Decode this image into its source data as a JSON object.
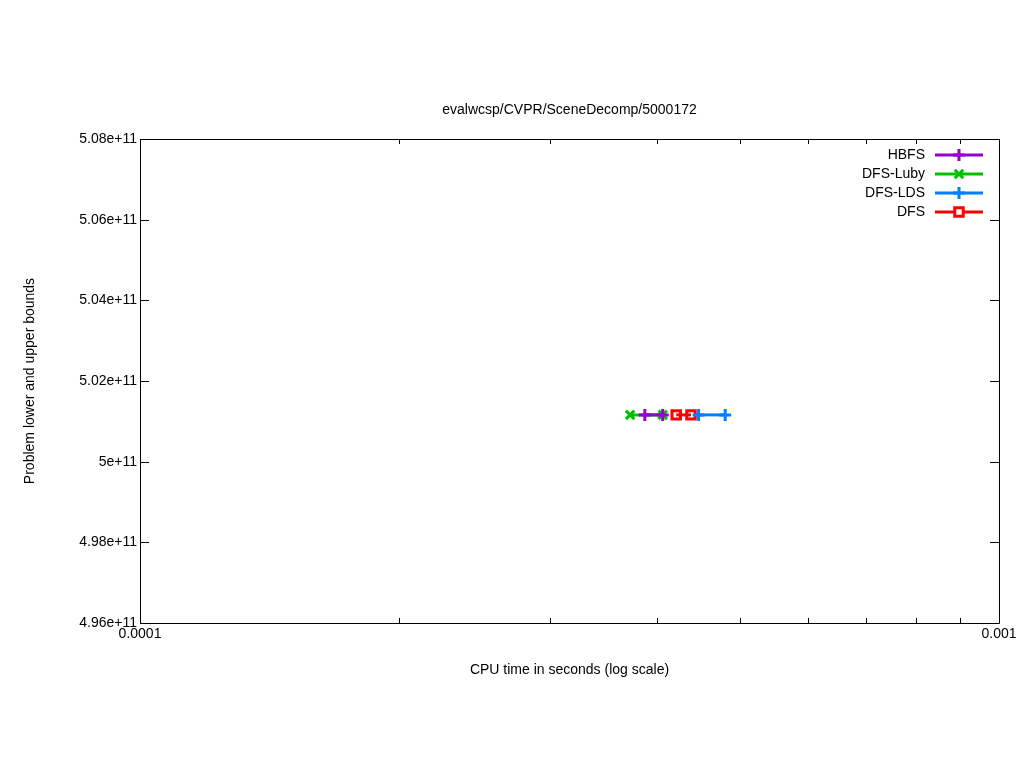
{
  "chart_data": {
    "type": "line",
    "title": "evalwcsp/CVPR/SceneDecomp/5000172",
    "xlabel": "CPU time in seconds (log scale)",
    "ylabel": "Problem lower and upper bounds",
    "log": "x",
    "legend": "top right",
    "line_style": "solid",
    "xlim": [
      0.0001,
      0.001
    ],
    "xticks": [
      {
        "value": 0.0001,
        "label": "0.0001"
      },
      {
        "value": 0.0002,
        "label": null
      },
      {
        "value": 0.0003,
        "label": null
      },
      {
        "value": 0.0004,
        "label": null
      },
      {
        "value": 0.0005,
        "label": null
      },
      {
        "value": 0.0006,
        "label": null
      },
      {
        "value": 0.0007,
        "label": null
      },
      {
        "value": 0.0008,
        "label": null
      },
      {
        "value": 0.0009,
        "label": null
      },
      {
        "value": 0.001,
        "label": "0.001"
      }
    ],
    "ylim": [
      496000000000,
      508000000000
    ],
    "yticks": [
      {
        "value": 496000000000,
        "label": "4.96e+11"
      },
      {
        "value": 498000000000,
        "label": "4.98e+11"
      },
      {
        "value": 500000000000,
        "label": "5e+11"
      },
      {
        "value": 502000000000,
        "label": "5.02e+11"
      },
      {
        "value": 504000000000,
        "label": "5.04e+11"
      },
      {
        "value": 506000000000,
        "label": "5.06e+11"
      },
      {
        "value": 508000000000,
        "label": "5.08e+11"
      }
    ],
    "series": [
      {
        "name": "HBFS",
        "color": "#9400d3",
        "marker": "cross",
        "x": [
          0.000387,
          0.000406
        ],
        "values": [
          501160000000,
          501160000000
        ]
      },
      {
        "name": "DFS-Luby",
        "color": "#00c000",
        "marker": "x",
        "x": [
          0.000372,
          0.000406
        ],
        "values": [
          501160000000,
          501160000000
        ]
      },
      {
        "name": "DFS-LDS",
        "color": "#0080ff",
        "marker": "cross",
        "x": [
          0.000447,
          0.00048
        ],
        "values": [
          501160000000,
          501160000000
        ]
      },
      {
        "name": "DFS",
        "color": "#ff0000",
        "marker": "square",
        "x": [
          0.000421,
          0.000438
        ],
        "values": [
          501160000000,
          501160000000
        ]
      }
    ]
  }
}
